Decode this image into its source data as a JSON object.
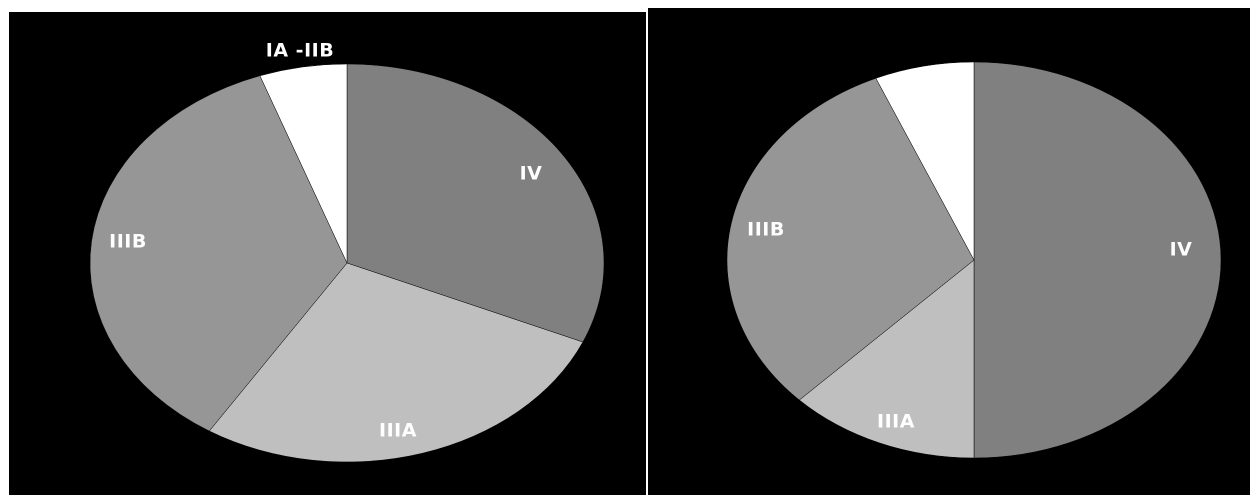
{
  "chart_data": [
    {
      "type": "pie",
      "title": "",
      "slices": [
        {
          "label": "IV",
          "value": 31.5,
          "color": "#808080"
        },
        {
          "label": "IIIA",
          "value": 27.5,
          "color": "#bfbfbf"
        },
        {
          "label": "IIIB",
          "value": 35.5,
          "color": "#969696"
        },
        {
          "label": "IA -IIB",
          "value": 5.5,
          "color": "#ffffff"
        }
      ]
    },
    {
      "type": "pie",
      "title": "",
      "slices": [
        {
          "label": "IV",
          "value": 50.0,
          "color": "#808080"
        },
        {
          "label": "IIIA",
          "value": 12.5,
          "color": "#bfbfbf"
        },
        {
          "label": "IIIB",
          "value": 31.0,
          "color": "#969696"
        },
        {
          "label": "",
          "value": 6.5,
          "color": "#ffffff"
        }
      ]
    }
  ]
}
